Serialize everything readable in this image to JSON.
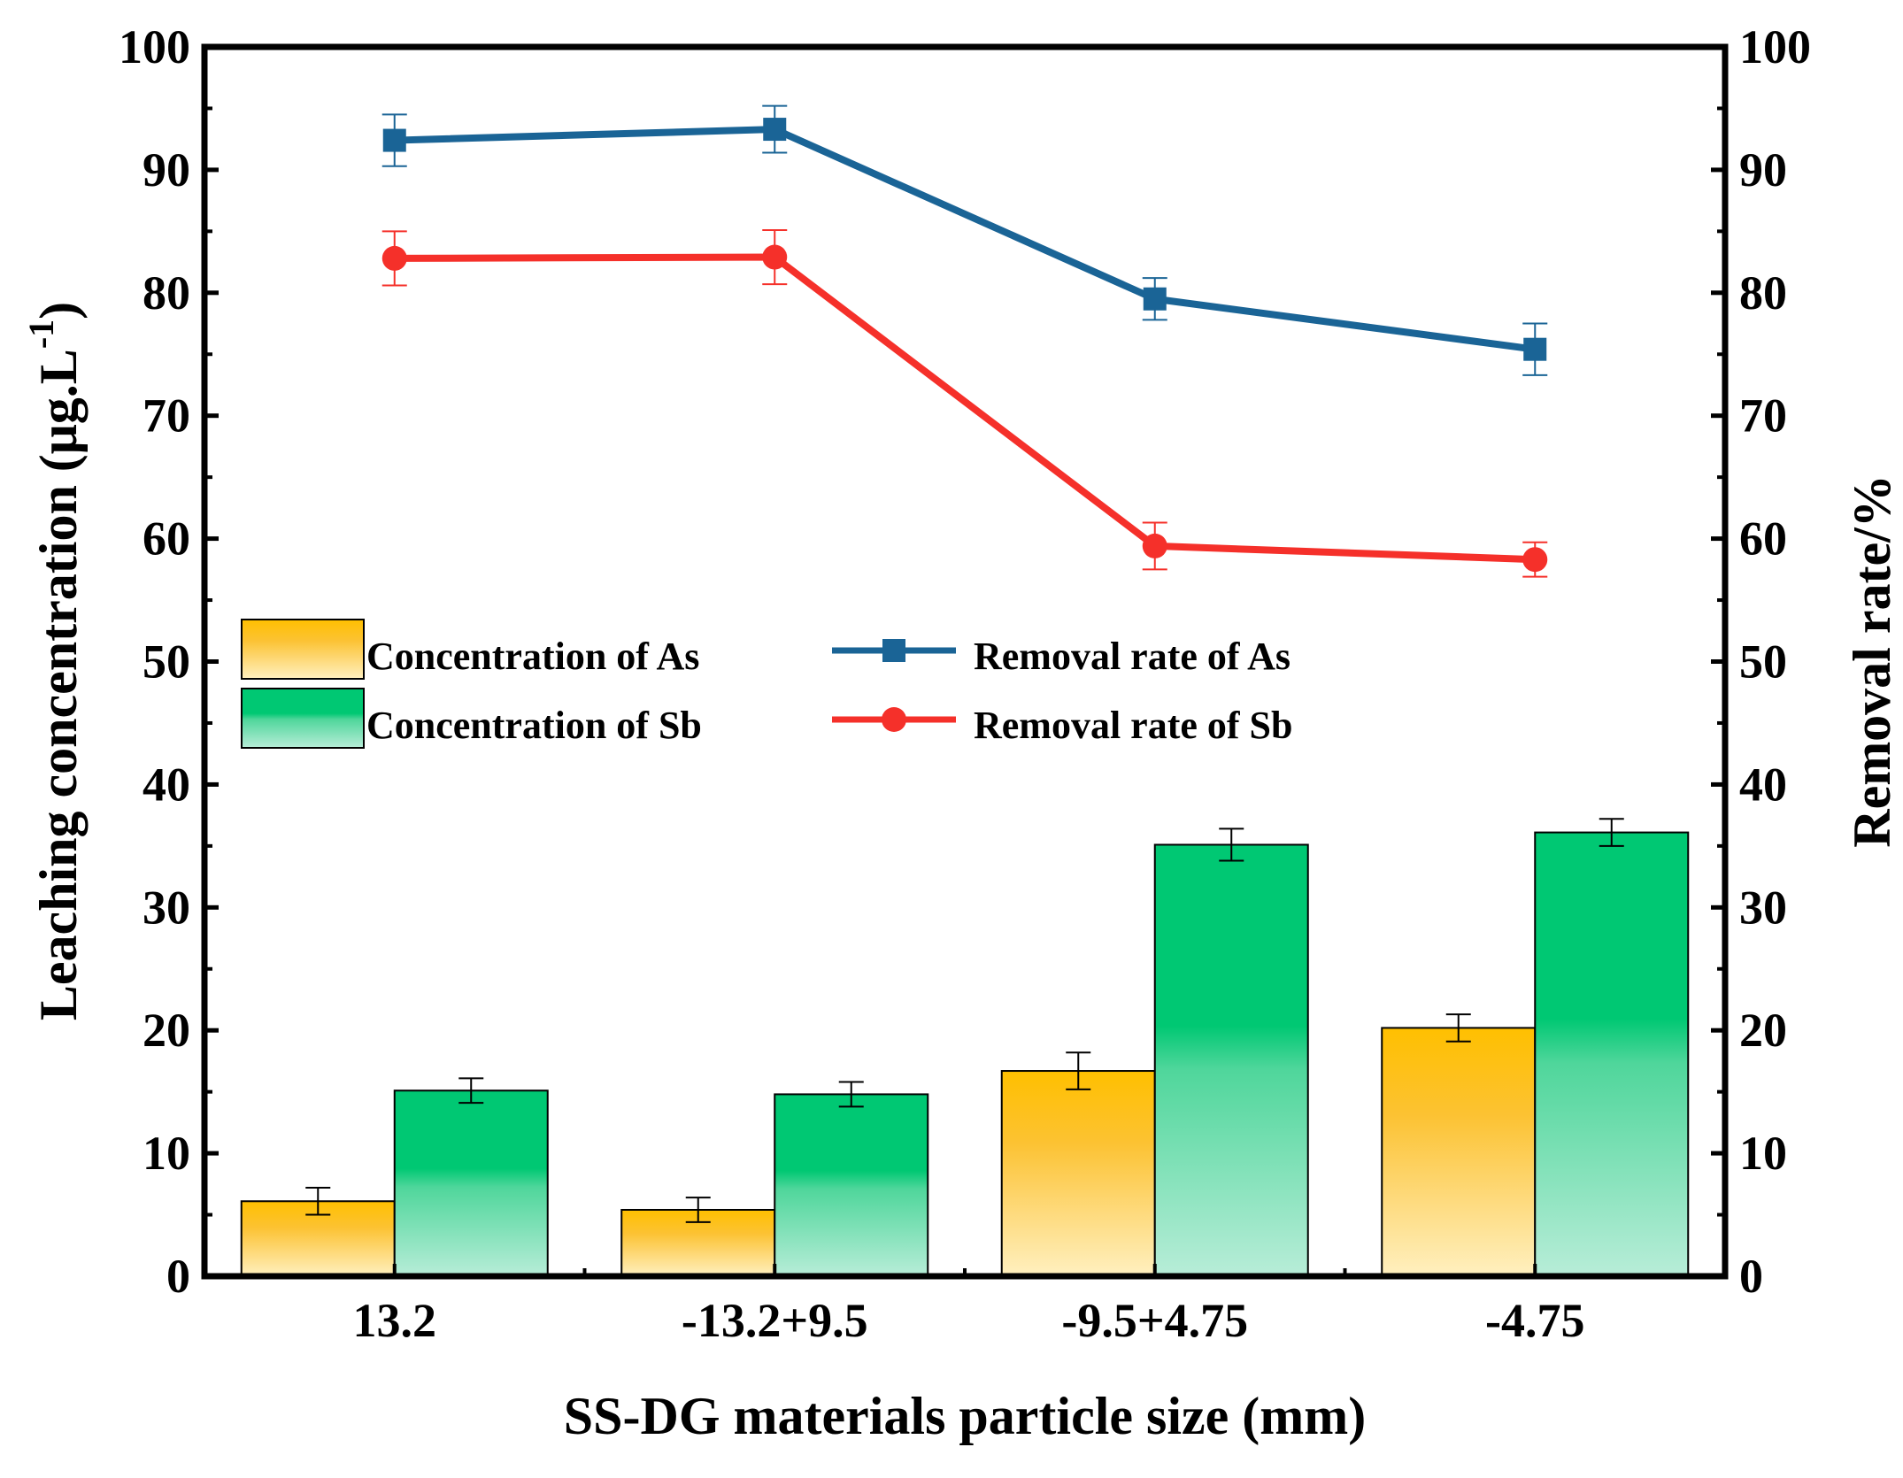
{
  "chart_data": {
    "type": "bar",
    "categories": [
      "13.2",
      "-13.2+9.5",
      "-9.5+4.75",
      "-4.75"
    ],
    "xlabel": "SS-DG materials particle size (mm)",
    "ylabel": "Leaching concentration (μg.L",
    "ylabel_sup": "-1",
    "ylabel_close": ")",
    "y2label": "Removal rate/%",
    "ylim": [
      0,
      100
    ],
    "y2lim": [
      0,
      100
    ],
    "yticks": [
      "0",
      "10",
      "20",
      "30",
      "40",
      "50",
      "60",
      "70",
      "80",
      "90",
      "100"
    ],
    "y2ticks": [
      "0",
      "10",
      "20",
      "30",
      "40",
      "50",
      "60",
      "70",
      "80",
      "90",
      "100"
    ],
    "series": [
      {
        "name": "Concentration of As",
        "kind": "bar",
        "axis": "left",
        "values": [
          6.1,
          5.4,
          16.7,
          20.2
        ],
        "errors": [
          1.1,
          1.0,
          1.5,
          1.1
        ],
        "color_top": "#ffc000",
        "color_bottom": "#fff0c0"
      },
      {
        "name": "Concentration of Sb",
        "kind": "bar",
        "axis": "left",
        "values": [
          15.1,
          14.8,
          35.1,
          36.1
        ],
        "errors": [
          1.0,
          1.0,
          1.3,
          1.1
        ],
        "color_top": "#00c873",
        "color_bottom": "#b8edd8"
      },
      {
        "name": "Removal rate of As",
        "kind": "line",
        "axis": "right",
        "marker": "square",
        "values": [
          92.4,
          93.3,
          79.5,
          75.4
        ],
        "errors": [
          2.1,
          1.9,
          1.7,
          2.1
        ],
        "color": "#1a6496"
      },
      {
        "name": "Removal rate of Sb",
        "kind": "line",
        "axis": "right",
        "marker": "circle",
        "values": [
          82.8,
          82.9,
          59.4,
          58.3
        ],
        "errors": [
          2.2,
          2.2,
          1.9,
          1.4
        ],
        "color": "#f5302a"
      }
    ],
    "legend_position": "center-left"
  }
}
